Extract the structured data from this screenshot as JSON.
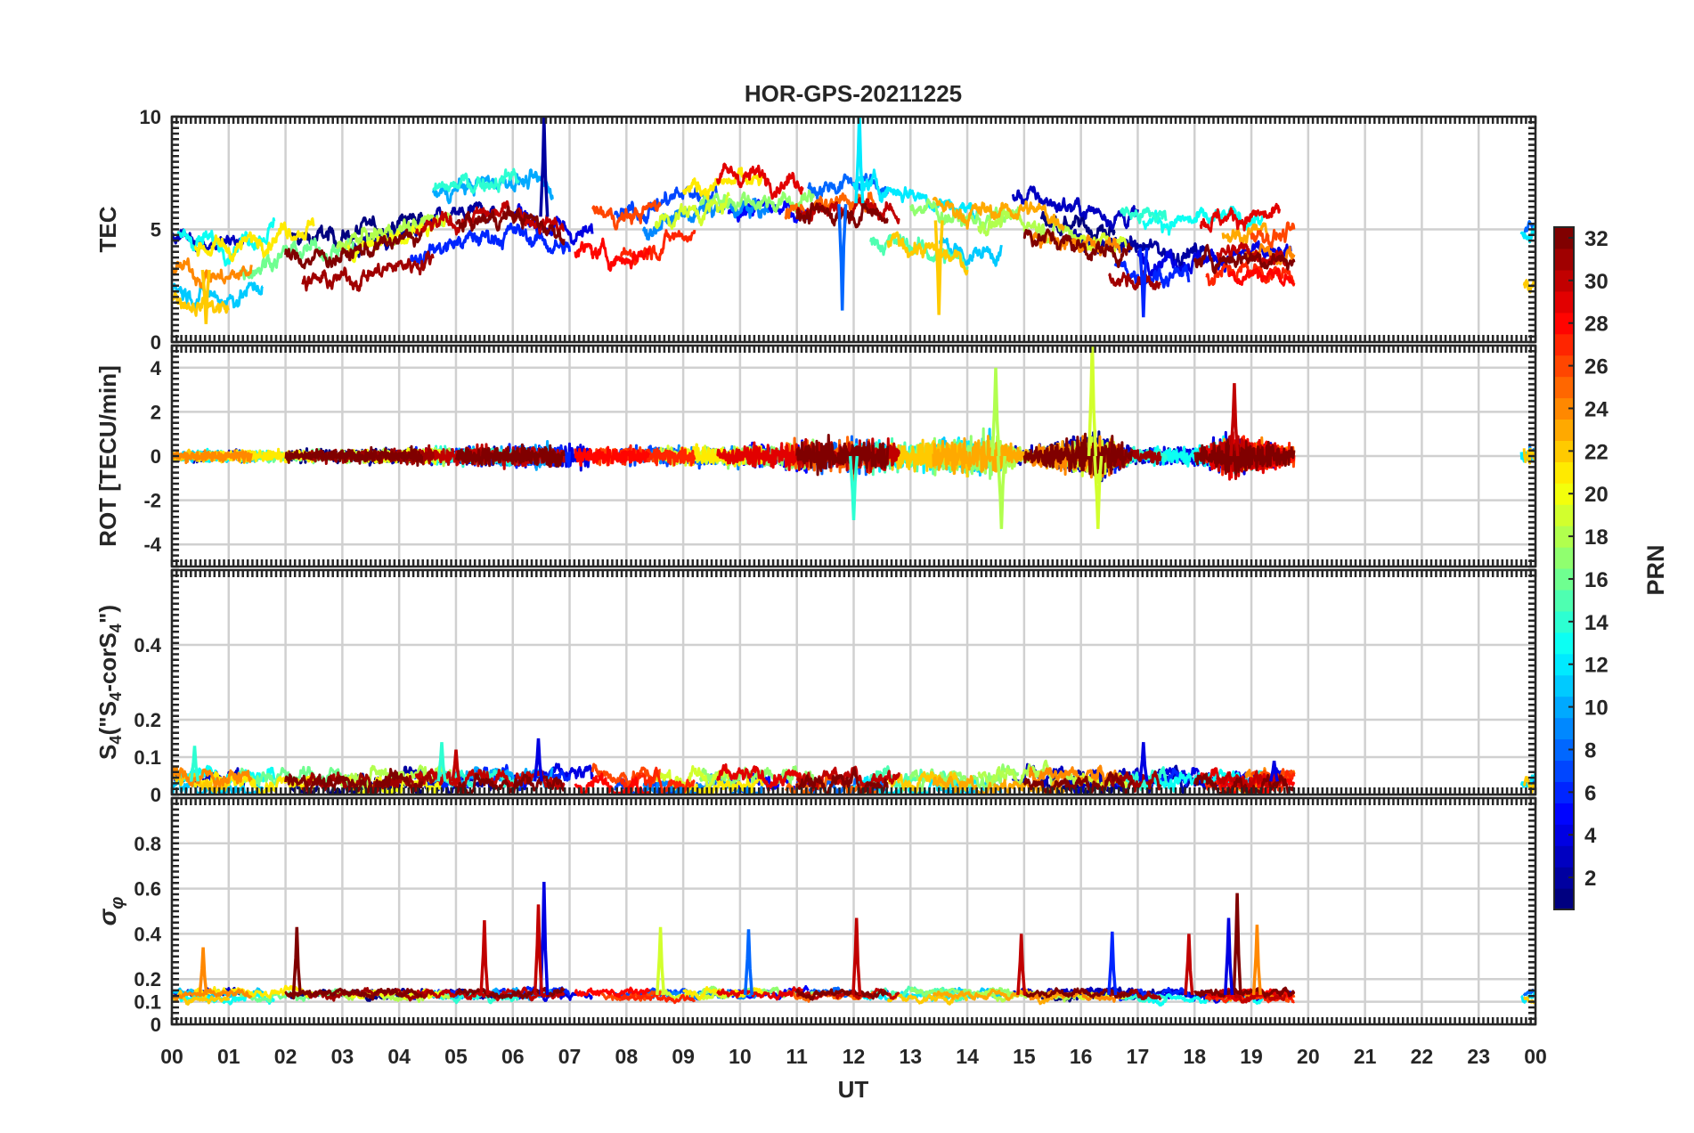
{
  "chart_data": {
    "type": "line",
    "title": "HOR-GPS-20211225",
    "xlabel": "UT",
    "x_ticks": [
      "00",
      "01",
      "02",
      "03",
      "04",
      "05",
      "06",
      "07",
      "08",
      "09",
      "10",
      "11",
      "12",
      "13",
      "14",
      "15",
      "16",
      "17",
      "18",
      "19",
      "20",
      "21",
      "22",
      "23",
      "00"
    ],
    "xlim_hours": [
      0,
      24
    ],
    "data_coverage_hours": [
      [
        0,
        19.75
      ],
      [
        23.75,
        24
      ]
    ],
    "panels": [
      {
        "key": "tec",
        "ylabel": "TEC",
        "ylim": [
          0,
          10
        ],
        "yticks": [
          0,
          5,
          10
        ],
        "ytick_labels": [
          "0",
          "5",
          "10"
        ],
        "profile": [
          [
            0,
            3.5
          ],
          [
            1,
            3.0
          ],
          [
            2,
            4.0
          ],
          [
            3,
            4.2
          ],
          [
            4,
            4.8
          ],
          [
            5,
            5.5
          ],
          [
            6,
            6.0
          ],
          [
            7,
            5.2
          ],
          [
            8,
            4.8
          ],
          [
            9,
            5.8
          ],
          [
            10,
            6.0
          ],
          [
            11,
            5.8
          ],
          [
            12,
            6.2
          ],
          [
            13,
            5.8
          ],
          [
            14,
            5.0
          ],
          [
            15,
            5.2
          ],
          [
            16,
            4.6
          ],
          [
            17,
            4.2
          ],
          [
            18,
            4.0
          ],
          [
            19,
            4.2
          ],
          [
            19.75,
            4.0
          ]
        ],
        "spread": 1.6,
        "noise": 0.35,
        "features": [
          [
            6.55,
            10.0,
            "2"
          ],
          [
            12.1,
            10.2,
            "12"
          ],
          [
            17.1,
            1.1,
            "6"
          ],
          [
            0.6,
            0.8,
            "22"
          ],
          [
            11.8,
            1.4,
            "8"
          ],
          [
            13.5,
            1.2,
            "22"
          ]
        ]
      },
      {
        "key": "rot",
        "ylabel": "ROT [TECU/min]",
        "ylim": [
          -5,
          5
        ],
        "yticks": [
          -4,
          -2,
          0,
          2,
          4
        ],
        "ytick_labels": [
          "-4",
          "-2",
          "0",
          "2",
          "4"
        ],
        "profile": [
          [
            0,
            0
          ],
          [
            19.75,
            0
          ]
        ],
        "amplitude": [
          [
            0,
            0.35
          ],
          [
            3,
            0.4
          ],
          [
            5,
            0.55
          ],
          [
            6.5,
            0.8
          ],
          [
            8,
            0.55
          ],
          [
            10,
            0.6
          ],
          [
            11,
            1.0
          ],
          [
            12,
            1.2
          ],
          [
            13,
            0.9
          ],
          [
            14.5,
            1.4
          ],
          [
            15,
            0.4
          ],
          [
            16.2,
            1.6
          ],
          [
            17,
            0.45
          ],
          [
            18,
            0.6
          ],
          [
            18.7,
            1.3
          ],
          [
            19.75,
            0.6
          ]
        ],
        "spread": 0,
        "noise": 1,
        "features": [
          [
            16.2,
            5.3,
            "19"
          ],
          [
            16.3,
            -3.3,
            "19"
          ],
          [
            14.6,
            -3.3,
            "18"
          ],
          [
            18.7,
            3.3,
            "30"
          ],
          [
            12.0,
            -2.9,
            "14"
          ],
          [
            14.5,
            4.0,
            "18"
          ]
        ]
      },
      {
        "key": "s4",
        "ylabel": "S4 (\"S4-corS4\")",
        "ylabel_main": "S",
        "ylabel_sub": "4",
        "ylabel_mid1": " (\"S",
        "ylabel_mid2": "-corS",
        "ylabel_end": "\")",
        "ylim": [
          0,
          0.6
        ],
        "yticks": [
          0,
          0.1,
          0.2,
          0.4
        ],
        "ytick_labels": [
          "0",
          "0.1",
          "0.2",
          "0.4"
        ],
        "profile": [
          [
            0,
            0.035
          ],
          [
            19.75,
            0.035
          ]
        ],
        "spread": 0.02,
        "noise": 0.02,
        "features": [
          [
            4.75,
            0.14,
            "14"
          ],
          [
            6.45,
            0.15,
            "4"
          ],
          [
            17.1,
            0.14,
            "4"
          ],
          [
            5.0,
            0.12,
            "30"
          ],
          [
            0.4,
            0.13,
            "14"
          ],
          [
            19.4,
            0.09,
            "4"
          ]
        ]
      },
      {
        "key": "sigma",
        "ylabel": "σφ",
        "ylabel_main": "σ",
        "ylabel_sub": "φ",
        "ylim": [
          0,
          1
        ],
        "yticks": [
          0,
          0.1,
          0.2,
          0.4,
          0.6,
          0.8
        ],
        "ytick_labels": [
          "0",
          "0.1",
          "0.2",
          "0.4",
          "0.6",
          "0.8"
        ],
        "profile": [
          [
            0,
            0.13
          ],
          [
            19.75,
            0.13
          ]
        ],
        "spread": 0.015,
        "noise": 0.015,
        "features": [
          [
            6.55,
            0.63,
            "4"
          ],
          [
            6.45,
            0.53,
            "30"
          ],
          [
            18.75,
            0.58,
            "32"
          ],
          [
            18.6,
            0.47,
            "4"
          ],
          [
            5.5,
            0.46,
            "30"
          ],
          [
            12.05,
            0.47,
            "30"
          ],
          [
            2.2,
            0.43,
            "32"
          ],
          [
            8.6,
            0.43,
            "19"
          ],
          [
            10.15,
            0.42,
            "8"
          ],
          [
            14.95,
            0.4,
            "30"
          ],
          [
            16.55,
            0.41,
            "6"
          ],
          [
            19.1,
            0.44,
            "24"
          ],
          [
            17.9,
            0.4,
            "30"
          ],
          [
            0.55,
            0.34,
            "24"
          ]
        ]
      }
    ],
    "colorbar": {
      "label": "PRN",
      "colormap": "jet",
      "range": [
        1,
        32
      ],
      "ticks": [
        "2",
        "4",
        "6",
        "8",
        "10",
        "12",
        "14",
        "16",
        "18",
        "20",
        "22",
        "24",
        "26",
        "28",
        "30",
        "32"
      ],
      "tick_values": [
        2,
        4,
        6,
        8,
        10,
        12,
        14,
        16,
        18,
        20,
        22,
        24,
        26,
        28,
        30,
        32
      ]
    },
    "series": [
      {
        "prn": 1,
        "segments": [
          [
            2.1,
            4.4
          ],
          [
            15.3,
            16.6
          ]
        ]
      },
      {
        "prn": 2,
        "segments": [
          [
            3.2,
            5.7
          ],
          [
            15.8,
            18.2
          ]
        ]
      },
      {
        "prn": 3,
        "segments": [
          [
            0.0,
            1.3
          ],
          [
            14.8,
            17.0
          ]
        ]
      },
      {
        "prn": 4,
        "segments": [
          [
            6.0,
            7.4
          ],
          [
            17.0,
            19.7
          ]
        ]
      },
      {
        "prn": 5,
        "segments": [
          [
            9.8,
            11.2
          ]
        ]
      },
      {
        "prn": 6,
        "segments": [
          [
            4.2,
            7.0
          ],
          [
            16.6,
            17.9
          ]
        ]
      },
      {
        "prn": 7,
        "segments": [
          [
            7.8,
            9.6
          ]
        ]
      },
      {
        "prn": 8,
        "segments": [
          [
            11.2,
            12.6
          ],
          [
            23.8,
            24.0
          ]
        ]
      },
      {
        "prn": 9,
        "segments": [
          [
            8.3,
            10.5
          ]
        ]
      },
      {
        "prn": 10,
        "segments": [
          [
            4.6,
            6.7
          ]
        ]
      },
      {
        "prn": 11,
        "segments": [
          [
            0.0,
            1.6
          ],
          [
            13.5,
            14.6
          ]
        ]
      },
      {
        "prn": 12,
        "segments": [
          [
            12.0,
            14.2
          ],
          [
            23.75,
            24.0
          ]
        ]
      },
      {
        "prn": 13,
        "segments": [
          [
            0.1,
            1.8
          ],
          [
            17.1,
            19.2
          ]
        ]
      },
      {
        "prn": 14,
        "segments": [
          [
            4.6,
            6.1
          ],
          [
            16.7,
            17.5
          ]
        ]
      },
      {
        "prn": 15,
        "segments": [
          [
            12.3,
            14.0
          ]
        ]
      },
      {
        "prn": 16,
        "segments": [
          [
            1.2,
            3.2
          ]
        ]
      },
      {
        "prn": 17,
        "segments": [
          [
            9.3,
            11.3
          ],
          [
            13.0,
            14.9
          ]
        ]
      },
      {
        "prn": 18,
        "segments": [
          [
            2.9,
            4.9
          ],
          [
            14.2,
            15.9
          ]
        ]
      },
      {
        "prn": 19,
        "segments": [
          [
            15.9,
            16.8
          ],
          [
            8.5,
            9.8
          ]
        ]
      },
      {
        "prn": 20,
        "segments": [
          [
            3.1,
            4.8
          ]
        ]
      },
      {
        "prn": 21,
        "segments": [
          [
            0.4,
            2.5
          ],
          [
            9.0,
            10.4
          ]
        ]
      },
      {
        "prn": 22,
        "segments": [
          [
            12.6,
            14.0
          ],
          [
            0.0,
            1.0
          ],
          [
            23.8,
            24.0
          ]
        ]
      },
      {
        "prn": 23,
        "segments": [
          [
            13.4,
            15.7
          ],
          [
            18.5,
            19.3
          ]
        ]
      },
      {
        "prn": 24,
        "segments": [
          [
            0.0,
            1.4
          ],
          [
            15.1,
            16.7
          ],
          [
            18.9,
            19.75
          ]
        ]
      },
      {
        "prn": 25,
        "segments": [
          [
            10.8,
            12.4
          ]
        ]
      },
      {
        "prn": 26,
        "segments": [
          [
            7.4,
            8.6
          ],
          [
            19.0,
            19.75
          ]
        ]
      },
      {
        "prn": 27,
        "segments": [
          [
            7.9,
            9.2
          ],
          [
            18.2,
            19.75
          ]
        ]
      },
      {
        "prn": 28,
        "segments": [
          [
            7.1,
            8.4
          ],
          [
            18.6,
            19.75
          ]
        ]
      },
      {
        "prn": 29,
        "segments": [
          [
            9.6,
            11.1
          ],
          [
            18.1,
            19.5
          ]
        ]
      },
      {
        "prn": 30,
        "segments": [
          [
            4.3,
            6.9
          ],
          [
            11.0,
            12.8
          ],
          [
            18.4,
            19.6
          ]
        ]
      },
      {
        "prn": 31,
        "segments": [
          [
            2.3,
            4.6
          ],
          [
            16.5,
            17.4
          ]
        ]
      },
      {
        "prn": 32,
        "segments": [
          [
            2.0,
            4.4
          ],
          [
            5.0,
            6.9
          ],
          [
            11.0,
            12.6
          ],
          [
            15.0,
            16.9
          ],
          [
            18.0,
            19.75
          ]
        ]
      }
    ]
  }
}
